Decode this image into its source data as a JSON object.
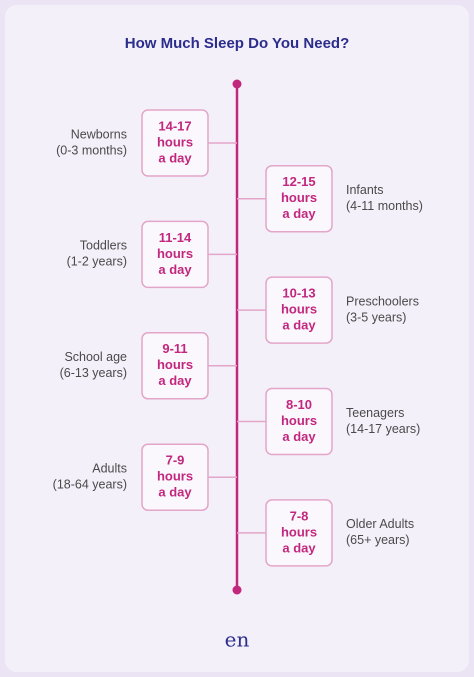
{
  "title": "How Much Sleep Do You Need?",
  "items": [
    {
      "label": "Newborns",
      "age": "(0-3 months)",
      "hours": [
        "14-17",
        "hours",
        "a day"
      ]
    },
    {
      "label": "Infants",
      "age": "(4-11 months)",
      "hours": [
        "12-15",
        "hours",
        "a day"
      ]
    },
    {
      "label": "Toddlers",
      "age": "(1-2 years)",
      "hours": [
        "11-14",
        "hours",
        "a day"
      ]
    },
    {
      "label": "Preschoolers",
      "age": "(3-5 years)",
      "hours": [
        "10-13",
        "hours",
        "a day"
      ]
    },
    {
      "label": "School age",
      "age": "(6-13 years)",
      "hours": [
        "9-11",
        "hours",
        "a day"
      ]
    },
    {
      "label": "Teenagers",
      "age": "(14-17 years)",
      "hours": [
        "8-10",
        "hours",
        "a day"
      ]
    },
    {
      "label": "Adults",
      "age": "(18-64 years)",
      "hours": [
        "7-9",
        "hours",
        "a day"
      ]
    },
    {
      "label": "Older Adults",
      "age": "(65+ years)",
      "hours": [
        "7-8",
        "hours",
        "a day"
      ]
    }
  ],
  "logo": "en"
}
